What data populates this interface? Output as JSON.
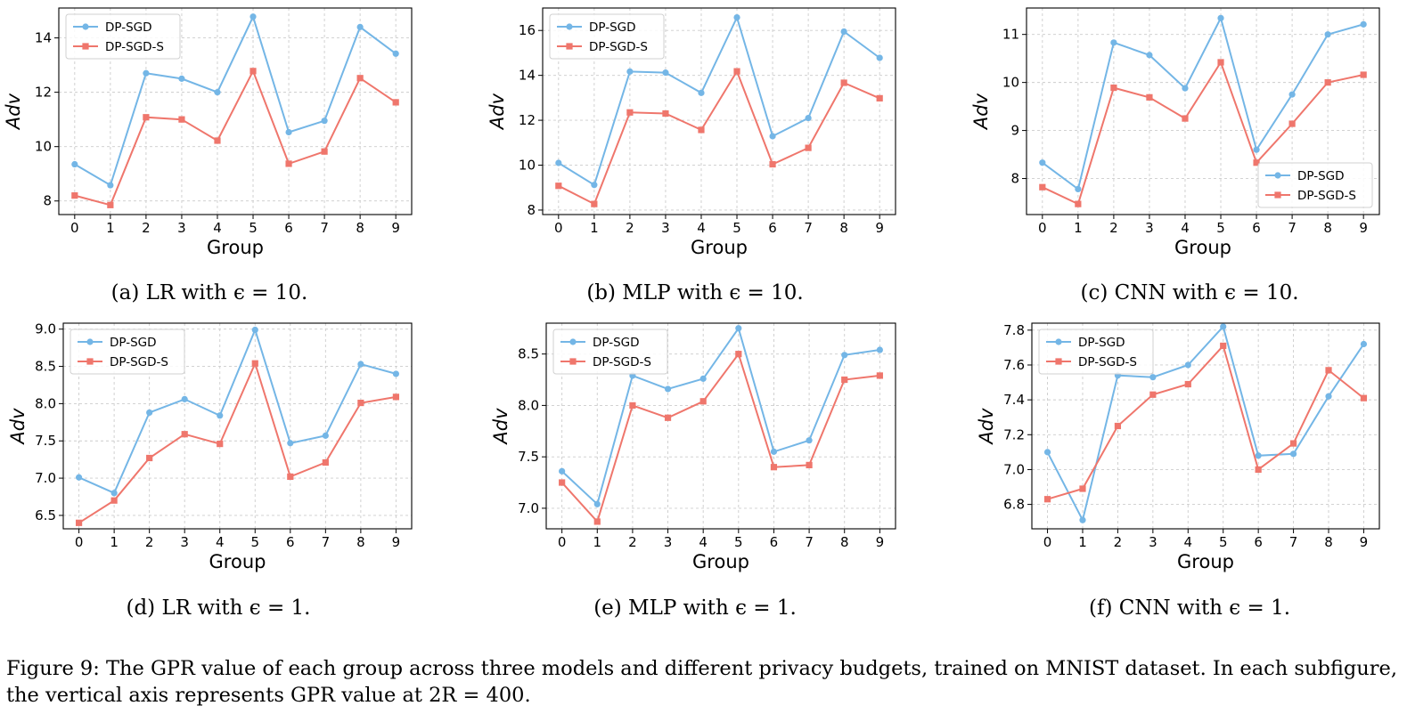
{
  "chart_data": [
    {
      "type": "line",
      "xlabel": "Group",
      "ylabel": "Adv",
      "categories": [
        "0",
        "1",
        "2",
        "3",
        "4",
        "5",
        "6",
        "7",
        "8",
        "9"
      ],
      "ylim": [
        7.5,
        15.1
      ],
      "yticks": [
        "8",
        "10",
        "12",
        "14"
      ],
      "grid": true,
      "legend_position": "top-left",
      "series": [
        {
          "name": "DP-SGD",
          "values": [
            9.35,
            8.58,
            12.7,
            12.5,
            12.0,
            14.78,
            10.53,
            10.95,
            14.4,
            13.42
          ]
        },
        {
          "name": "DP-SGD-S",
          "values": [
            8.2,
            7.85,
            11.08,
            11.0,
            10.22,
            12.78,
            9.37,
            9.82,
            12.52,
            11.63
          ]
        }
      ],
      "caption": "(a) LR with ϵ = 10."
    },
    {
      "type": "line",
      "xlabel": "Group",
      "ylabel": "Adv",
      "categories": [
        "0",
        "1",
        "2",
        "3",
        "4",
        "5",
        "6",
        "7",
        "8",
        "9"
      ],
      "ylim": [
        7.8,
        17.0
      ],
      "yticks": [
        "8",
        "10",
        "12",
        "14",
        "16"
      ],
      "grid": true,
      "legend_position": "top-left",
      "series": [
        {
          "name": "DP-SGD",
          "values": [
            10.1,
            9.12,
            14.17,
            14.12,
            13.22,
            16.58,
            11.29,
            12.1,
            15.95,
            14.78
          ]
        },
        {
          "name": "DP-SGD-S",
          "values": [
            9.08,
            8.27,
            12.35,
            12.3,
            11.57,
            14.18,
            10.04,
            10.77,
            13.67,
            12.98
          ]
        }
      ],
      "caption": "(b) MLP with ϵ = 10."
    },
    {
      "type": "line",
      "xlabel": "Group",
      "ylabel": "Adv",
      "categories": [
        "0",
        "1",
        "2",
        "3",
        "4",
        "5",
        "6",
        "7",
        "8",
        "9"
      ],
      "ylim": [
        7.25,
        11.55
      ],
      "yticks": [
        "8",
        "9",
        "10",
        "11"
      ],
      "grid": true,
      "legend_position": "bottom-right",
      "series": [
        {
          "name": "DP-SGD",
          "values": [
            8.33,
            7.78,
            10.83,
            10.57,
            9.88,
            11.34,
            8.6,
            9.75,
            11.0,
            11.21
          ]
        },
        {
          "name": "DP-SGD-S",
          "values": [
            7.82,
            7.47,
            9.89,
            9.69,
            9.25,
            10.42,
            8.33,
            9.14,
            10.0,
            10.16
          ]
        }
      ],
      "caption": "(c) CNN with ϵ = 10."
    },
    {
      "type": "line",
      "xlabel": "Group",
      "ylabel": "Adv",
      "categories": [
        "0",
        "1",
        "2",
        "3",
        "4",
        "5",
        "6",
        "7",
        "8",
        "9"
      ],
      "ylim": [
        6.32,
        9.08
      ],
      "yticks": [
        "6.5",
        "7.0",
        "7.5",
        "8.0",
        "8.5",
        "9.0"
      ],
      "grid": true,
      "legend_position": "top-left",
      "series": [
        {
          "name": "DP-SGD",
          "values": [
            7.01,
            6.8,
            7.88,
            8.06,
            7.84,
            8.99,
            7.47,
            7.57,
            8.53,
            8.4
          ]
        },
        {
          "name": "DP-SGD-S",
          "values": [
            6.4,
            6.7,
            7.27,
            7.59,
            7.46,
            8.54,
            7.02,
            7.21,
            8.01,
            8.09
          ]
        }
      ],
      "caption": "(d) LR with ϵ = 1."
    },
    {
      "type": "line",
      "xlabel": "Group",
      "ylabel": "Adv",
      "categories": [
        "0",
        "1",
        "2",
        "3",
        "4",
        "5",
        "6",
        "7",
        "8",
        "9"
      ],
      "ylim": [
        6.8,
        8.8
      ],
      "yticks": [
        "7.0",
        "7.5",
        "8.0",
        "8.5"
      ],
      "grid": true,
      "legend_position": "top-left",
      "series": [
        {
          "name": "DP-SGD",
          "values": [
            7.36,
            7.04,
            8.29,
            8.16,
            8.26,
            8.75,
            7.55,
            7.66,
            8.49,
            8.54
          ]
        },
        {
          "name": "DP-SGD-S",
          "values": [
            7.25,
            6.87,
            8.0,
            7.88,
            8.04,
            8.5,
            7.4,
            7.42,
            8.25,
            8.29
          ]
        }
      ],
      "caption": "(e) MLP with ϵ = 1."
    },
    {
      "type": "line",
      "xlabel": "Group",
      "ylabel": "Adv",
      "categories": [
        "0",
        "1",
        "2",
        "3",
        "4",
        "5",
        "6",
        "7",
        "8",
        "9"
      ],
      "ylim": [
        6.66,
        7.84
      ],
      "yticks": [
        "6.8",
        "7.0",
        "7.2",
        "7.4",
        "7.6",
        "7.8"
      ],
      "grid": true,
      "legend_position": "top-left",
      "series": [
        {
          "name": "DP-SGD",
          "values": [
            7.1,
            6.71,
            7.54,
            7.53,
            7.6,
            7.82,
            7.08,
            7.09,
            7.42,
            7.72
          ]
        },
        {
          "name": "DP-SGD-S",
          "values": [
            6.83,
            6.89,
            7.25,
            7.43,
            7.49,
            7.71,
            7.0,
            7.15,
            7.57,
            7.41
          ]
        }
      ],
      "caption": "(f) CNN with ϵ = 1."
    }
  ],
  "colors": {
    "series": [
      "#74b6e6",
      "#ef766c"
    ],
    "grid": "#cccccc"
  },
  "figure_caption": "Figure 9: The GPR value of each group across three models and different privacy budgets, trained on MNIST dataset. In each subfigure, the vertical axis represents GPR value at 2R = 400."
}
